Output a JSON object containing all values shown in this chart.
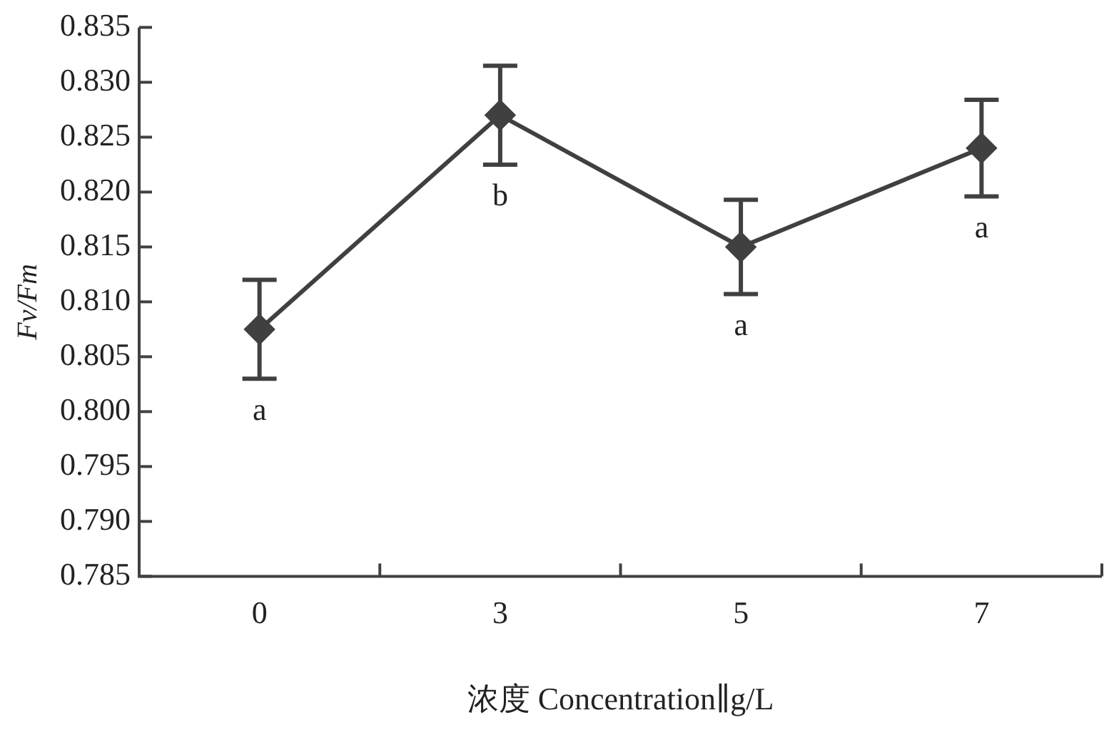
{
  "chart_data": {
    "type": "line",
    "xlabel": "浓度 Concentration∥g/L",
    "ylabel": "Fv/Fm",
    "categories": [
      "0",
      "3",
      "5",
      "7"
    ],
    "series": [
      {
        "color": "#404040",
        "values": [
          0.8075,
          0.827,
          0.815,
          0.824
        ],
        "errors": [
          0.0045,
          0.0045,
          0.0043,
          0.0044
        ]
      }
    ],
    "ylim": [
      0.785,
      0.835
    ],
    "yticks": [
      0.785,
      {
        "value": 0.79,
        "label": "0.790"
      },
      0.795,
      {
        "value": 0.8,
        "label": "0.800"
      },
      0.805,
      {
        "value": 0.81,
        "label": "0.810"
      },
      0.815,
      {
        "value": 0.82,
        "label": "0.820"
      },
      0.825,
      {
        "value": 0.83,
        "label": "0.830"
      },
      0.835
    ],
    "annotations": [
      "a",
      "b",
      "a",
      "a"
    ],
    "marker": "diamond",
    "line_style": "solid",
    "grid": false,
    "legend": false
  }
}
